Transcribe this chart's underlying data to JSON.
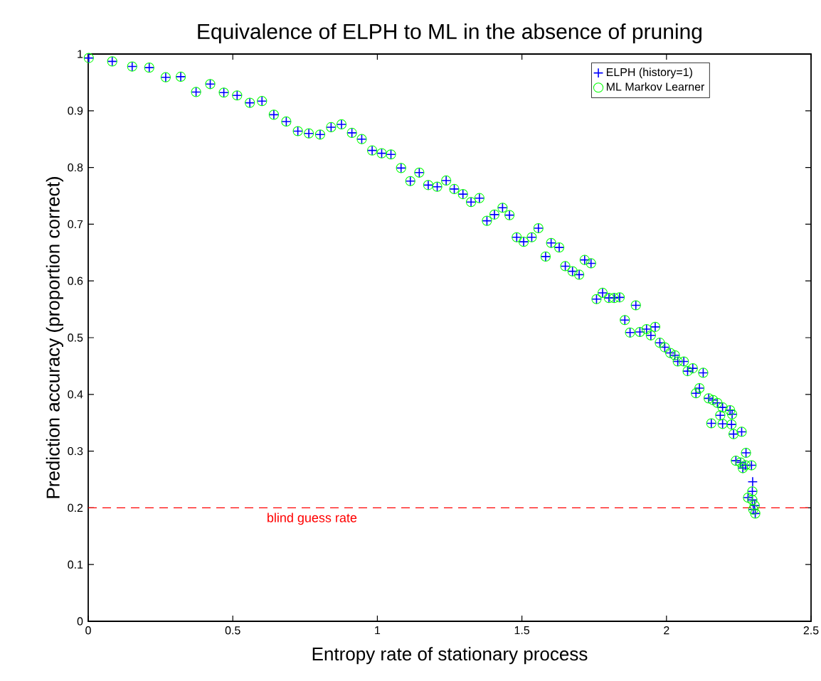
{
  "chart_data": {
    "type": "scatter",
    "title": "Equivalence of ELPH to ML in the absence of pruning",
    "xlabel": "Entropy rate of stationary process",
    "ylabel": "Prediction accuracy (proportion correct)",
    "x": [
      0.002,
      0.083,
      0.152,
      0.211,
      0.268,
      0.32,
      0.373,
      0.422,
      0.469,
      0.515,
      0.559,
      0.601,
      0.642,
      0.685,
      0.725,
      0.763,
      0.802,
      0.84,
      0.876,
      0.912,
      0.946,
      0.982,
      1.015,
      1.047,
      1.082,
      1.114,
      1.145,
      1.176,
      1.207,
      1.238,
      1.266,
      1.296,
      1.324,
      1.353,
      1.379,
      1.405,
      1.433,
      1.457,
      1.482,
      1.506,
      1.534,
      1.557,
      1.582,
      1.601,
      1.629,
      1.65,
      1.675,
      1.698,
      1.717,
      1.739,
      1.758,
      1.779,
      1.801,
      1.819,
      1.838,
      1.856,
      1.874,
      1.894,
      1.908,
      1.931,
      1.946,
      1.961,
      1.977,
      1.994,
      2.013,
      2.029,
      2.039,
      2.06,
      2.073,
      2.091,
      2.102,
      2.114,
      2.127,
      2.146,
      2.155,
      2.161,
      2.176,
      2.186,
      2.194,
      2.194,
      2.22,
      2.225,
      2.227,
      2.232,
      2.24,
      2.256,
      2.26,
      2.264,
      2.273,
      2.275,
      2.282,
      2.294,
      2.297,
      2.297,
      2.298,
      2.3,
      2.305,
      2.307
    ],
    "series": [
      {
        "name": "ELPH (history=1)",
        "color": "#0000ff",
        "marker": "cross",
        "values": [
          0.993,
          0.987,
          0.978,
          0.976,
          0.959,
          0.96,
          0.933,
          0.947,
          0.932,
          0.927,
          0.914,
          0.917,
          0.893,
          0.881,
          0.864,
          0.86,
          0.858,
          0.871,
          0.876,
          0.861,
          0.85,
          0.83,
          0.825,
          0.823,
          0.799,
          0.776,
          0.791,
          0.769,
          0.766,
          0.777,
          0.762,
          0.753,
          0.739,
          0.746,
          0.706,
          0.717,
          0.729,
          0.716,
          0.677,
          0.669,
          0.677,
          0.693,
          0.643,
          0.667,
          0.659,
          0.626,
          0.617,
          0.611,
          0.637,
          0.631,
          0.568,
          0.579,
          0.57,
          0.57,
          0.571,
          0.531,
          0.509,
          0.557,
          0.51,
          0.515,
          0.504,
          0.519,
          0.491,
          0.483,
          0.473,
          0.469,
          0.458,
          0.458,
          0.441,
          0.446,
          0.402,
          0.411,
          0.438,
          0.393,
          0.349,
          0.39,
          0.385,
          0.363,
          0.377,
          0.348,
          0.372,
          0.347,
          0.365,
          0.33,
          0.283,
          0.28,
          0.334,
          0.27,
          0.275,
          0.297,
          0.218,
          0.275,
          0.229,
          0.214,
          0.246,
          0.197,
          0.204,
          0.19
        ]
      },
      {
        "name": "ML Markov Learner",
        "color": "#00ff00",
        "marker": "circle",
        "values": [
          0.993,
          0.987,
          0.978,
          0.976,
          0.959,
          0.96,
          0.933,
          0.947,
          0.932,
          0.927,
          0.914,
          0.917,
          0.893,
          0.881,
          0.864,
          0.86,
          0.858,
          0.871,
          0.876,
          0.861,
          0.85,
          0.83,
          0.825,
          0.823,
          0.799,
          0.776,
          0.791,
          0.769,
          0.766,
          0.777,
          0.762,
          0.753,
          0.739,
          0.746,
          0.706,
          0.717,
          0.729,
          0.716,
          0.677,
          0.669,
          0.677,
          0.693,
          0.643,
          0.667,
          0.659,
          0.626,
          0.617,
          0.611,
          0.637,
          0.631,
          0.568,
          0.579,
          0.57,
          0.57,
          0.571,
          0.531,
          0.509,
          0.557,
          0.51,
          0.515,
          0.504,
          0.519,
          0.491,
          0.483,
          0.473,
          0.469,
          0.458,
          0.458,
          0.441,
          0.446,
          0.402,
          0.411,
          0.438,
          0.393,
          0.349,
          0.39,
          0.385,
          0.363,
          0.377,
          0.348,
          0.372,
          0.347,
          0.365,
          0.33,
          0.283,
          0.28,
          0.334,
          0.27,
          0.275,
          0.297,
          0.218,
          0.275,
          0.229,
          0.214,
          null,
          0.197,
          0.204,
          0.19
        ]
      }
    ],
    "xlim": [
      0,
      2.5
    ],
    "xticks": [
      0,
      0.5,
      1,
      1.5,
      2,
      2.5
    ],
    "ylim": [
      0,
      1
    ],
    "yticks": [
      0,
      0.1,
      0.2,
      0.3,
      0.4,
      0.5,
      0.6,
      0.7,
      0.8,
      0.9,
      1
    ],
    "ref_lines": [
      {
        "axis": "y",
        "value": 0.2,
        "label": "blind guess  rate",
        "color": "#ff0000",
        "line_style": "dashed"
      }
    ],
    "grid": false,
    "legend": "top right"
  }
}
